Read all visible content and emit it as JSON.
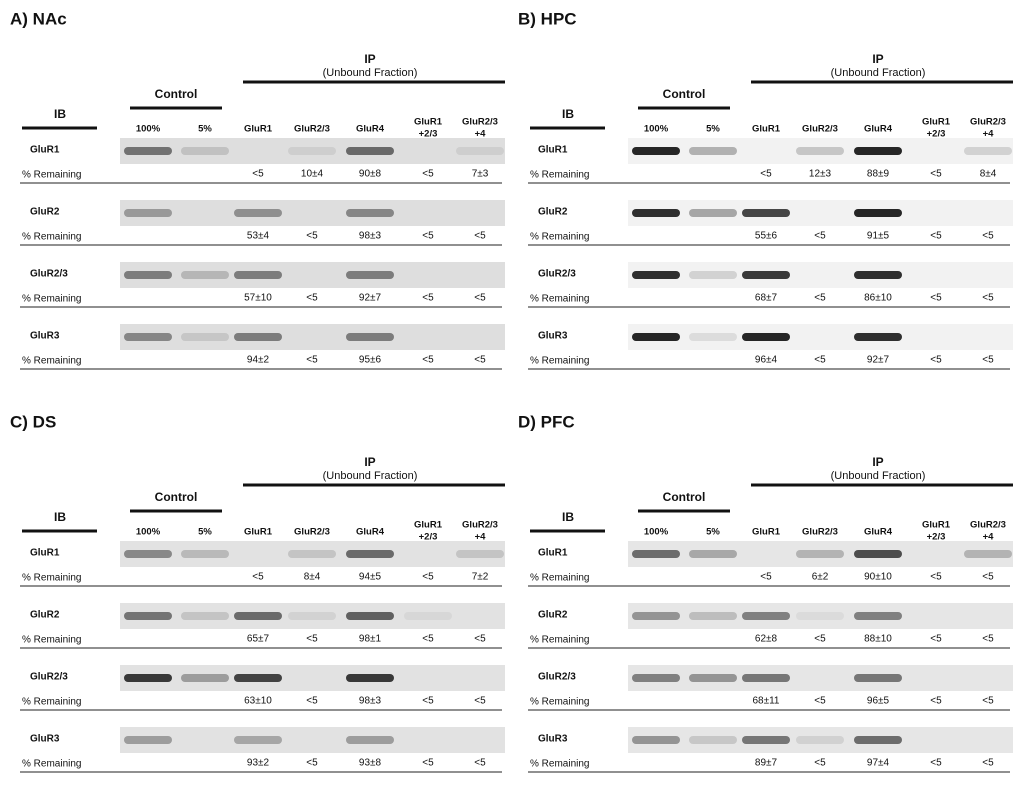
{
  "panels": [
    {
      "title": "A) NAc",
      "ip": "IP",
      "ip_sub": "(Unbound Fraction)",
      "control": "Control",
      "ib": "IB",
      "columns": [
        [
          "100%"
        ],
        [
          "5%"
        ],
        [
          "GluR1"
        ],
        [
          "GluR2/3"
        ],
        [
          "GluR4"
        ],
        [
          "GluR1",
          "+2/3"
        ],
        [
          "GluR2/3",
          "+4"
        ]
      ],
      "rows": [
        {
          "name": "GluR1",
          "label": "% Remaining",
          "values": [
            "<5",
            "10±4",
            "90±8",
            "<5",
            "7±3"
          ]
        },
        {
          "name": "GluR2",
          "label": "% Remaining",
          "values": [
            "53±4",
            "<5",
            "98±3",
            "<5",
            "<5"
          ]
        },
        {
          "name": "GluR2/3",
          "label": "% Remaining",
          "values": [
            "57±10",
            "<5",
            "92±7",
            "<5",
            "<5"
          ]
        },
        {
          "name": "GluR3",
          "label": "% Remaining",
          "values": [
            "94±2",
            "<5",
            "95±6",
            "<5",
            "<5"
          ]
        }
      ]
    },
    {
      "title": "B) HPC",
      "ip": "IP",
      "ip_sub": "(Unbound Fraction)",
      "control": "Control",
      "ib": "IB",
      "columns": [
        [
          "100%"
        ],
        [
          "5%"
        ],
        [
          "GluR1"
        ],
        [
          "GluR2/3"
        ],
        [
          "GluR4"
        ],
        [
          "GluR1",
          "+2/3"
        ],
        [
          "GluR2/3",
          "+4"
        ]
      ],
      "rows": [
        {
          "name": "GluR1",
          "label": "% Remaining",
          "values": [
            "<5",
            "12±3",
            "88±9",
            "<5",
            "8±4"
          ]
        },
        {
          "name": "GluR2",
          "label": "% Remaining",
          "values": [
            "55±6",
            "<5",
            "91±5",
            "<5",
            "<5"
          ]
        },
        {
          "name": "GluR2/3",
          "label": "% Remaining",
          "values": [
            "68±7",
            "<5",
            "86±10",
            "<5",
            "<5"
          ]
        },
        {
          "name": "GluR3",
          "label": "% Remaining",
          "values": [
            "96±4",
            "<5",
            "92±7",
            "<5",
            "<5"
          ]
        }
      ]
    },
    {
      "title": "C) DS",
      "ip": "IP",
      "ip_sub": "(Unbound Fraction)",
      "control": "Control",
      "ib": "IB",
      "columns": [
        [
          "100%"
        ],
        [
          "5%"
        ],
        [
          "GluR1"
        ],
        [
          "GluR2/3"
        ],
        [
          "GluR4"
        ],
        [
          "GluR1",
          "+2/3"
        ],
        [
          "GluR2/3",
          "+4"
        ]
      ],
      "rows": [
        {
          "name": "GluR1",
          "label": "% Remaining",
          "values": [
            "<5",
            "8±4",
            "94±5",
            "<5",
            "7±2"
          ]
        },
        {
          "name": "GluR2",
          "label": "% Remaining",
          "values": [
            "65±7",
            "<5",
            "98±1",
            "<5",
            "<5"
          ]
        },
        {
          "name": "GluR2/3",
          "label": "% Remaining",
          "values": [
            "63±10",
            "<5",
            "98±3",
            "<5",
            "<5"
          ]
        },
        {
          "name": "GluR3",
          "label": "% Remaining",
          "values": [
            "93±2",
            "<5",
            "93±8",
            "<5",
            "<5"
          ]
        }
      ]
    },
    {
      "title": "D) PFC",
      "ip": "IP",
      "ip_sub": "(Unbound Fraction)",
      "control": "Control",
      "ib": "IB",
      "columns": [
        [
          "100%"
        ],
        [
          "5%"
        ],
        [
          "GluR1"
        ],
        [
          "GluR2/3"
        ],
        [
          "GluR4"
        ],
        [
          "GluR1",
          "+2/3"
        ],
        [
          "GluR2/3",
          "+4"
        ]
      ],
      "rows": [
        {
          "name": "GluR1",
          "label": "% Remaining",
          "values": [
            "<5",
            "6±2",
            "90±10",
            "<5",
            "<5"
          ]
        },
        {
          "name": "GluR2",
          "label": "% Remaining",
          "values": [
            "62±8",
            "<5",
            "88±10",
            "<5",
            "<5"
          ]
        },
        {
          "name": "GluR2/3",
          "label": "% Remaining",
          "values": [
            "68±11",
            "<5",
            "96±5",
            "<5",
            "<5"
          ]
        },
        {
          "name": "GluR3",
          "label": "% Remaining",
          "values": [
            "89±7",
            "<5",
            "97±4",
            "<5",
            "<5"
          ]
        }
      ]
    }
  ]
}
